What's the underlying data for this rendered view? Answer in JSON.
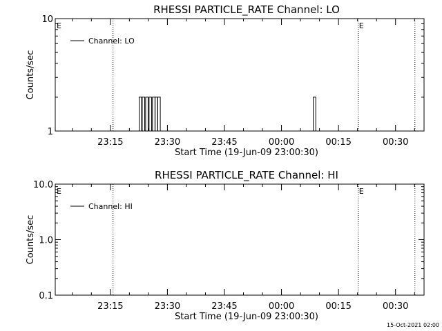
{
  "footer_timestamp": "15-Oct-2021 02:00",
  "chart_data": [
    {
      "type": "line",
      "title": "RHESSI PARTICLE_RATE Channel: LO",
      "xlabel": "Start Time (19-Jun-09 23:00:30)",
      "ylabel": "Counts/sec",
      "yscale": "log",
      "ylim": [
        1,
        10
      ],
      "y_ticks": [
        {
          "v": 1,
          "label": "1"
        },
        {
          "v": 10,
          "label": "10"
        }
      ],
      "xlim_minutes": [
        0,
        97
      ],
      "x_ticks": [
        {
          "t": 14.5,
          "label": "23:15"
        },
        {
          "t": 29.5,
          "label": "23:30"
        },
        {
          "t": 44.5,
          "label": "23:45"
        },
        {
          "t": 59.5,
          "label": "00:00"
        },
        {
          "t": 74.5,
          "label": "00:15"
        },
        {
          "t": 89.5,
          "label": "00:30"
        }
      ],
      "markers": [
        {
          "t": 0,
          "label": "E"
        },
        {
          "t": 15.2
        },
        {
          "t": 79.7,
          "label": "E"
        },
        {
          "t": 94.6
        }
      ],
      "legend": {
        "label": "Channel: LO",
        "position": "top-left"
      },
      "series": [
        {
          "name": "Channel: LO",
          "spikes": [
            {
              "t": 22.4,
              "y": 2
            },
            {
              "t": 23.2,
              "y": 2
            },
            {
              "t": 24.1,
              "y": 2
            },
            {
              "t": 25.0,
              "y": 2
            },
            {
              "t": 25.9,
              "y": 2
            },
            {
              "t": 26.6,
              "y": 2
            },
            {
              "t": 27.3,
              "y": 2
            },
            {
              "t": 68.2,
              "y": 2
            }
          ]
        }
      ]
    },
    {
      "type": "line",
      "title": "RHESSI PARTICLE_RATE Channel: HI",
      "xlabel": "Start Time (19-Jun-09 23:00:30)",
      "ylabel": "Counts/sec",
      "yscale": "log",
      "ylim": [
        0.1,
        10
      ],
      "y_ticks": [
        {
          "v": 0.1,
          "label": "0.1"
        },
        {
          "v": 1,
          "label": "1.0"
        },
        {
          "v": 10,
          "label": "10.0"
        }
      ],
      "xlim_minutes": [
        0,
        97
      ],
      "x_ticks": [
        {
          "t": 14.5,
          "label": "23:15"
        },
        {
          "t": 29.5,
          "label": "23:30"
        },
        {
          "t": 44.5,
          "label": "23:45"
        },
        {
          "t": 59.5,
          "label": "00:00"
        },
        {
          "t": 74.5,
          "label": "00:15"
        },
        {
          "t": 89.5,
          "label": "00:30"
        }
      ],
      "markers": [
        {
          "t": 0,
          "label": "E"
        },
        {
          "t": 15.2
        },
        {
          "t": 79.7,
          "label": "E"
        },
        {
          "t": 94.6
        }
      ],
      "legend": {
        "label": "Channel: HI",
        "position": "top-left"
      },
      "series": [
        {
          "name": "Channel: HI",
          "spikes": []
        }
      ]
    }
  ]
}
